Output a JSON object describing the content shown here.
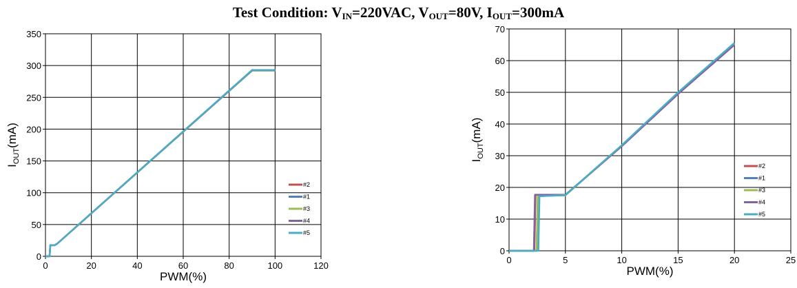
{
  "title": {
    "prefix": "Test Condition: V",
    "vin_sub": "IN",
    "vin_value": "=220VAC, V",
    "vout_sub": "OUT",
    "vout_value": "=80V, I",
    "iout_sub": "OUT",
    "iout_value": "=300mA"
  },
  "chart_data": [
    {
      "type": "line",
      "title": "",
      "xlabel": "PWM(%)",
      "ylabel_main": "I",
      "ylabel_sub": "OUT",
      "ylabel_unit": "(mA)",
      "xlim": [
        0,
        120
      ],
      "ylim": [
        0,
        350
      ],
      "xticks": [
        0,
        20,
        40,
        60,
        80,
        100,
        120
      ],
      "yticks": [
        0,
        50,
        100,
        150,
        200,
        250,
        300,
        350
      ],
      "grid": true,
      "legend_position": "right",
      "series": [
        {
          "name": "#2",
          "color": "#c0504d",
          "x": [
            0,
            1.8,
            2.1,
            4,
            5,
            90,
            100
          ],
          "y": [
            0,
            0,
            17.5,
            17.5,
            19.5,
            292.5,
            292.5
          ]
        },
        {
          "name": "#1",
          "color": "#4f81bd",
          "x": [
            0,
            1.8,
            2.1,
            4,
            5,
            90,
            100
          ],
          "y": [
            0,
            0,
            17.5,
            17.5,
            19.5,
            292.5,
            292.5
          ]
        },
        {
          "name": "#3",
          "color": "#9bbb59",
          "x": [
            0,
            1.8,
            2.1,
            4,
            5,
            90,
            100
          ],
          "y": [
            0,
            0,
            17.5,
            17.5,
            19.5,
            292,
            292
          ]
        },
        {
          "name": "#4",
          "color": "#8064a2",
          "x": [
            0,
            1.8,
            2.1,
            4,
            5,
            90,
            100
          ],
          "y": [
            0,
            0,
            17.5,
            17.5,
            19.5,
            292.5,
            292.5
          ]
        },
        {
          "name": "#5",
          "color": "#4bacc6",
          "x": [
            0,
            1.8,
            2.1,
            4,
            5,
            90,
            100
          ],
          "y": [
            0,
            0,
            17.5,
            17.5,
            19.5,
            293,
            293
          ]
        }
      ]
    },
    {
      "type": "line",
      "title": "",
      "xlabel": "PWM(%)",
      "ylabel_main": "I",
      "ylabel_sub": "OUT",
      "ylabel_unit": "(mA)",
      "xlim": [
        0,
        25
      ],
      "ylim": [
        0,
        70
      ],
      "xticks": [
        0,
        5,
        10,
        15,
        20,
        25
      ],
      "yticks": [
        0,
        10,
        20,
        30,
        40,
        50,
        60,
        70
      ],
      "grid": true,
      "legend_position": "right",
      "series": [
        {
          "name": "#2",
          "color": "#c0504d",
          "x": [
            0,
            2.25,
            2.35,
            5,
            10,
            15,
            20
          ],
          "y": [
            0,
            0,
            17.6,
            17.6,
            33,
            49.5,
            65
          ]
        },
        {
          "name": "#1",
          "color": "#4f81bd",
          "x": [
            0,
            2.45,
            2.55,
            5,
            10,
            15,
            20
          ],
          "y": [
            0,
            0,
            17.3,
            17.5,
            33.2,
            49.8,
            65.4
          ]
        },
        {
          "name": "#3",
          "color": "#9bbb59",
          "x": [
            0,
            2.45,
            2.55,
            5,
            10,
            15,
            20
          ],
          "y": [
            0,
            0,
            17.3,
            17.5,
            33.2,
            49.7,
            65.3
          ]
        },
        {
          "name": "#4",
          "color": "#8064a2",
          "x": [
            0,
            2.2,
            2.3,
            5,
            10,
            15,
            20
          ],
          "y": [
            0,
            0,
            17.7,
            17.7,
            33,
            49.5,
            65
          ]
        },
        {
          "name": "#5",
          "color": "#4bacc6",
          "x": [
            0,
            2.6,
            2.7,
            5,
            10,
            15,
            20
          ],
          "y": [
            0,
            0,
            17.2,
            17.6,
            33.3,
            50,
            65.6
          ]
        }
      ]
    }
  ]
}
